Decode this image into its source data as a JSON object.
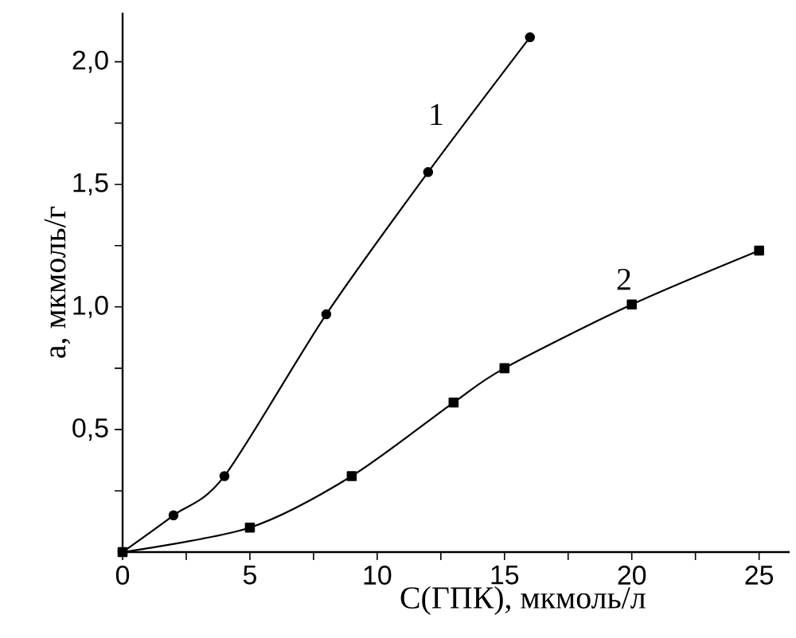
{
  "chart_data": {
    "type": "line",
    "xlabel": "C(ГПК), мкмоль/л",
    "ylabel": "a, мкмоль/г",
    "xlim": [
      0,
      26.2
    ],
    "ylim": [
      0,
      2.2
    ],
    "xticks": [
      0,
      {
        "value": 2.5,
        "label": null
      },
      5,
      {
        "value": 7.5,
        "label": null
      },
      10,
      {
        "value": 12.5,
        "label": null
      },
      15,
      {
        "value": 17.5,
        "label": null
      },
      20,
      {
        "value": 22.5,
        "label": null
      },
      25
    ],
    "yticks": [
      {
        "value": 0.25,
        "label": null
      },
      {
        "value": 0.5,
        "label": "0,5"
      },
      {
        "value": 0.75,
        "label": null
      },
      {
        "value": 1.0,
        "label": "1,0"
      },
      {
        "value": 1.25,
        "label": null
      },
      {
        "value": 1.5,
        "label": "1,5"
      },
      {
        "value": 1.75,
        "label": null
      },
      {
        "value": 2.0,
        "label": "2,0"
      }
    ],
    "grid": false,
    "series": [
      {
        "name": "1",
        "color": "#000000",
        "marker": "circle",
        "x": [
          0,
          2,
          4,
          8,
          12,
          16
        ],
        "values": [
          0,
          0.15,
          0.31,
          0.97,
          1.55,
          2.1
        ]
      },
      {
        "name": "2",
        "color": "#000000",
        "marker": "square",
        "x": [
          0,
          5,
          9,
          13,
          15,
          20,
          25
        ],
        "values": [
          0,
          0.1,
          0.31,
          0.61,
          0.75,
          1.01,
          1.23
        ]
      }
    ]
  }
}
